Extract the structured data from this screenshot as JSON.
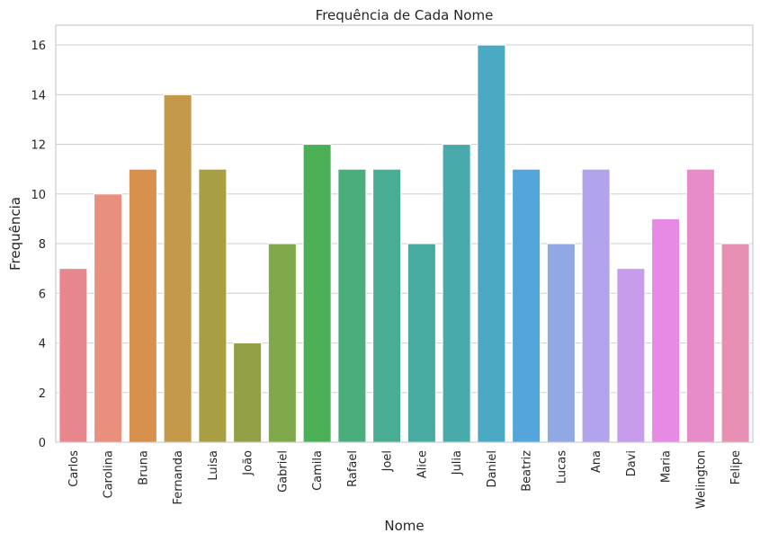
{
  "chart_data": {
    "type": "bar",
    "title": "Frequência de Cada Nome",
    "xlabel": "Nome",
    "ylabel": "Frequência",
    "categories": [
      "Carlos",
      "Carolina",
      "Bruna",
      "Fernanda",
      "Luisa",
      "João",
      "Gabriel",
      "Camila",
      "Rafael",
      "Joel",
      "Alice",
      "Julia",
      "Daniel",
      "Beatriz",
      "Lucas",
      "Ana",
      "Davi",
      "Maria",
      "Welington",
      "Felipe"
    ],
    "values": [
      7,
      10,
      11,
      14,
      11,
      4,
      8,
      12,
      11,
      11,
      8,
      12,
      16,
      11,
      8,
      11,
      7,
      9,
      11,
      8
    ],
    "colors": [
      "#e8868d",
      "#e8907d",
      "#d8914d",
      "#c49a4a",
      "#aa9e45",
      "#959f45",
      "#7fa84a",
      "#4aaf55",
      "#49ae7b",
      "#48ad93",
      "#48aba2",
      "#49aaab",
      "#4aa9c3",
      "#53a5db",
      "#90a8e4",
      "#b3a3ec",
      "#c89cec",
      "#e68ae6",
      "#e88bc9",
      "#e88fb4"
    ],
    "ylim": [
      0,
      16.8
    ],
    "yticks": [
      0,
      2,
      4,
      6,
      8,
      10,
      12,
      14,
      16
    ],
    "grid": "horizontal"
  }
}
